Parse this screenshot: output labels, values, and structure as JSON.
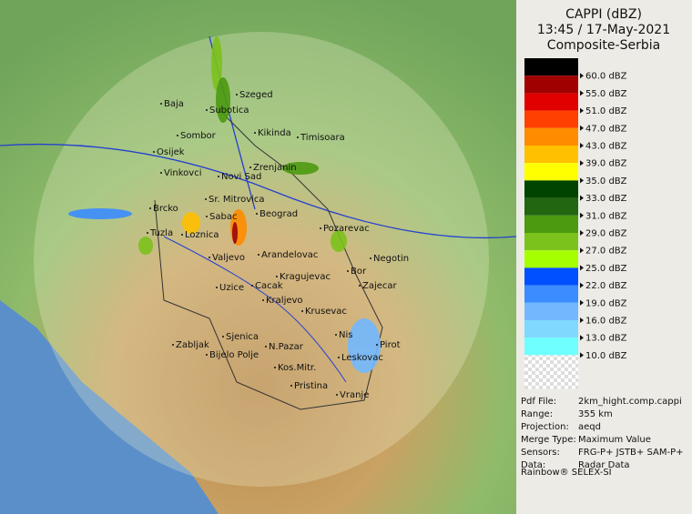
{
  "header": {
    "title": "CAPPI (dBZ)",
    "time": "13:45 / 17-May-2021",
    "subtitle": "Composite-Serbia"
  },
  "legend": {
    "items": [
      {
        "label": "60.0 dBZ",
        "color": "#000000"
      },
      {
        "label": "55.0 dBZ",
        "color": "#a00000"
      },
      {
        "label": "51.0 dBZ",
        "color": "#e00000"
      },
      {
        "label": "47.0 dBZ",
        "color": "#ff4000"
      },
      {
        "label": "43.0 dBZ",
        "color": "#ff8c00"
      },
      {
        "label": "39.0 dBZ",
        "color": "#ffc000"
      },
      {
        "label": "35.0 dBZ",
        "color": "#ffff00"
      },
      {
        "label": "33.0 dBZ",
        "color": "#004400"
      },
      {
        "label": "31.0 dBZ",
        "color": "#226611"
      },
      {
        "label": "29.0 dBZ",
        "color": "#4c9a10"
      },
      {
        "label": "27.0 dBZ",
        "color": "#7cc21c"
      },
      {
        "label": "25.0 dBZ",
        "color": "#a6ff00"
      },
      {
        "label": "22.0 dBZ",
        "color": "#0050ff"
      },
      {
        "label": "19.0 dBZ",
        "color": "#3a8cff"
      },
      {
        "label": "16.0 dBZ",
        "color": "#72b8ff"
      },
      {
        "label": "13.0 dBZ",
        "color": "#80d8ff"
      },
      {
        "label": "10.0 dBZ",
        "color": "#70ffff"
      }
    ]
  },
  "info": {
    "rows": [
      [
        "Pdf File:",
        "2km_hight.comp.cappi"
      ],
      [
        "Range:",
        "355 km"
      ],
      [
        "Projection:",
        "aeqd"
      ],
      [
        "Merge Type:",
        "Maximum Value"
      ],
      [
        "Sensors:",
        "FRG-P+ JSTB+ SAM-P+"
      ],
      [
        "Data:",
        "Radar Data"
      ]
    ],
    "footer": "Rainbow® SELEX-SI"
  },
  "map": {
    "cities": [
      "Baja",
      "Szeged",
      "Subotica",
      "Sombor",
      "Kikinda",
      "Timisoara",
      "Osijek",
      "Vinkovci",
      "Zrenjanin",
      "Novi Sad",
      "Sr. Mitrovica",
      "Brcko",
      "Beograd",
      "Sabac",
      "Pozarevac",
      "Tuzla",
      "Loznica",
      "Negotin",
      "Valjevo",
      "Arandelovac",
      "Kragujevac",
      "Bor",
      "Zajecar",
      "Uzice",
      "Cacak",
      "Kraljevo",
      "Krusevac",
      "Sjenica",
      "Nis",
      "Pirot",
      "Zabljak",
      "N.Pazar",
      "Bijelo Polje",
      "Leskovac",
      "Kos.Mitr.",
      "Pristina",
      "Vranje"
    ]
  }
}
